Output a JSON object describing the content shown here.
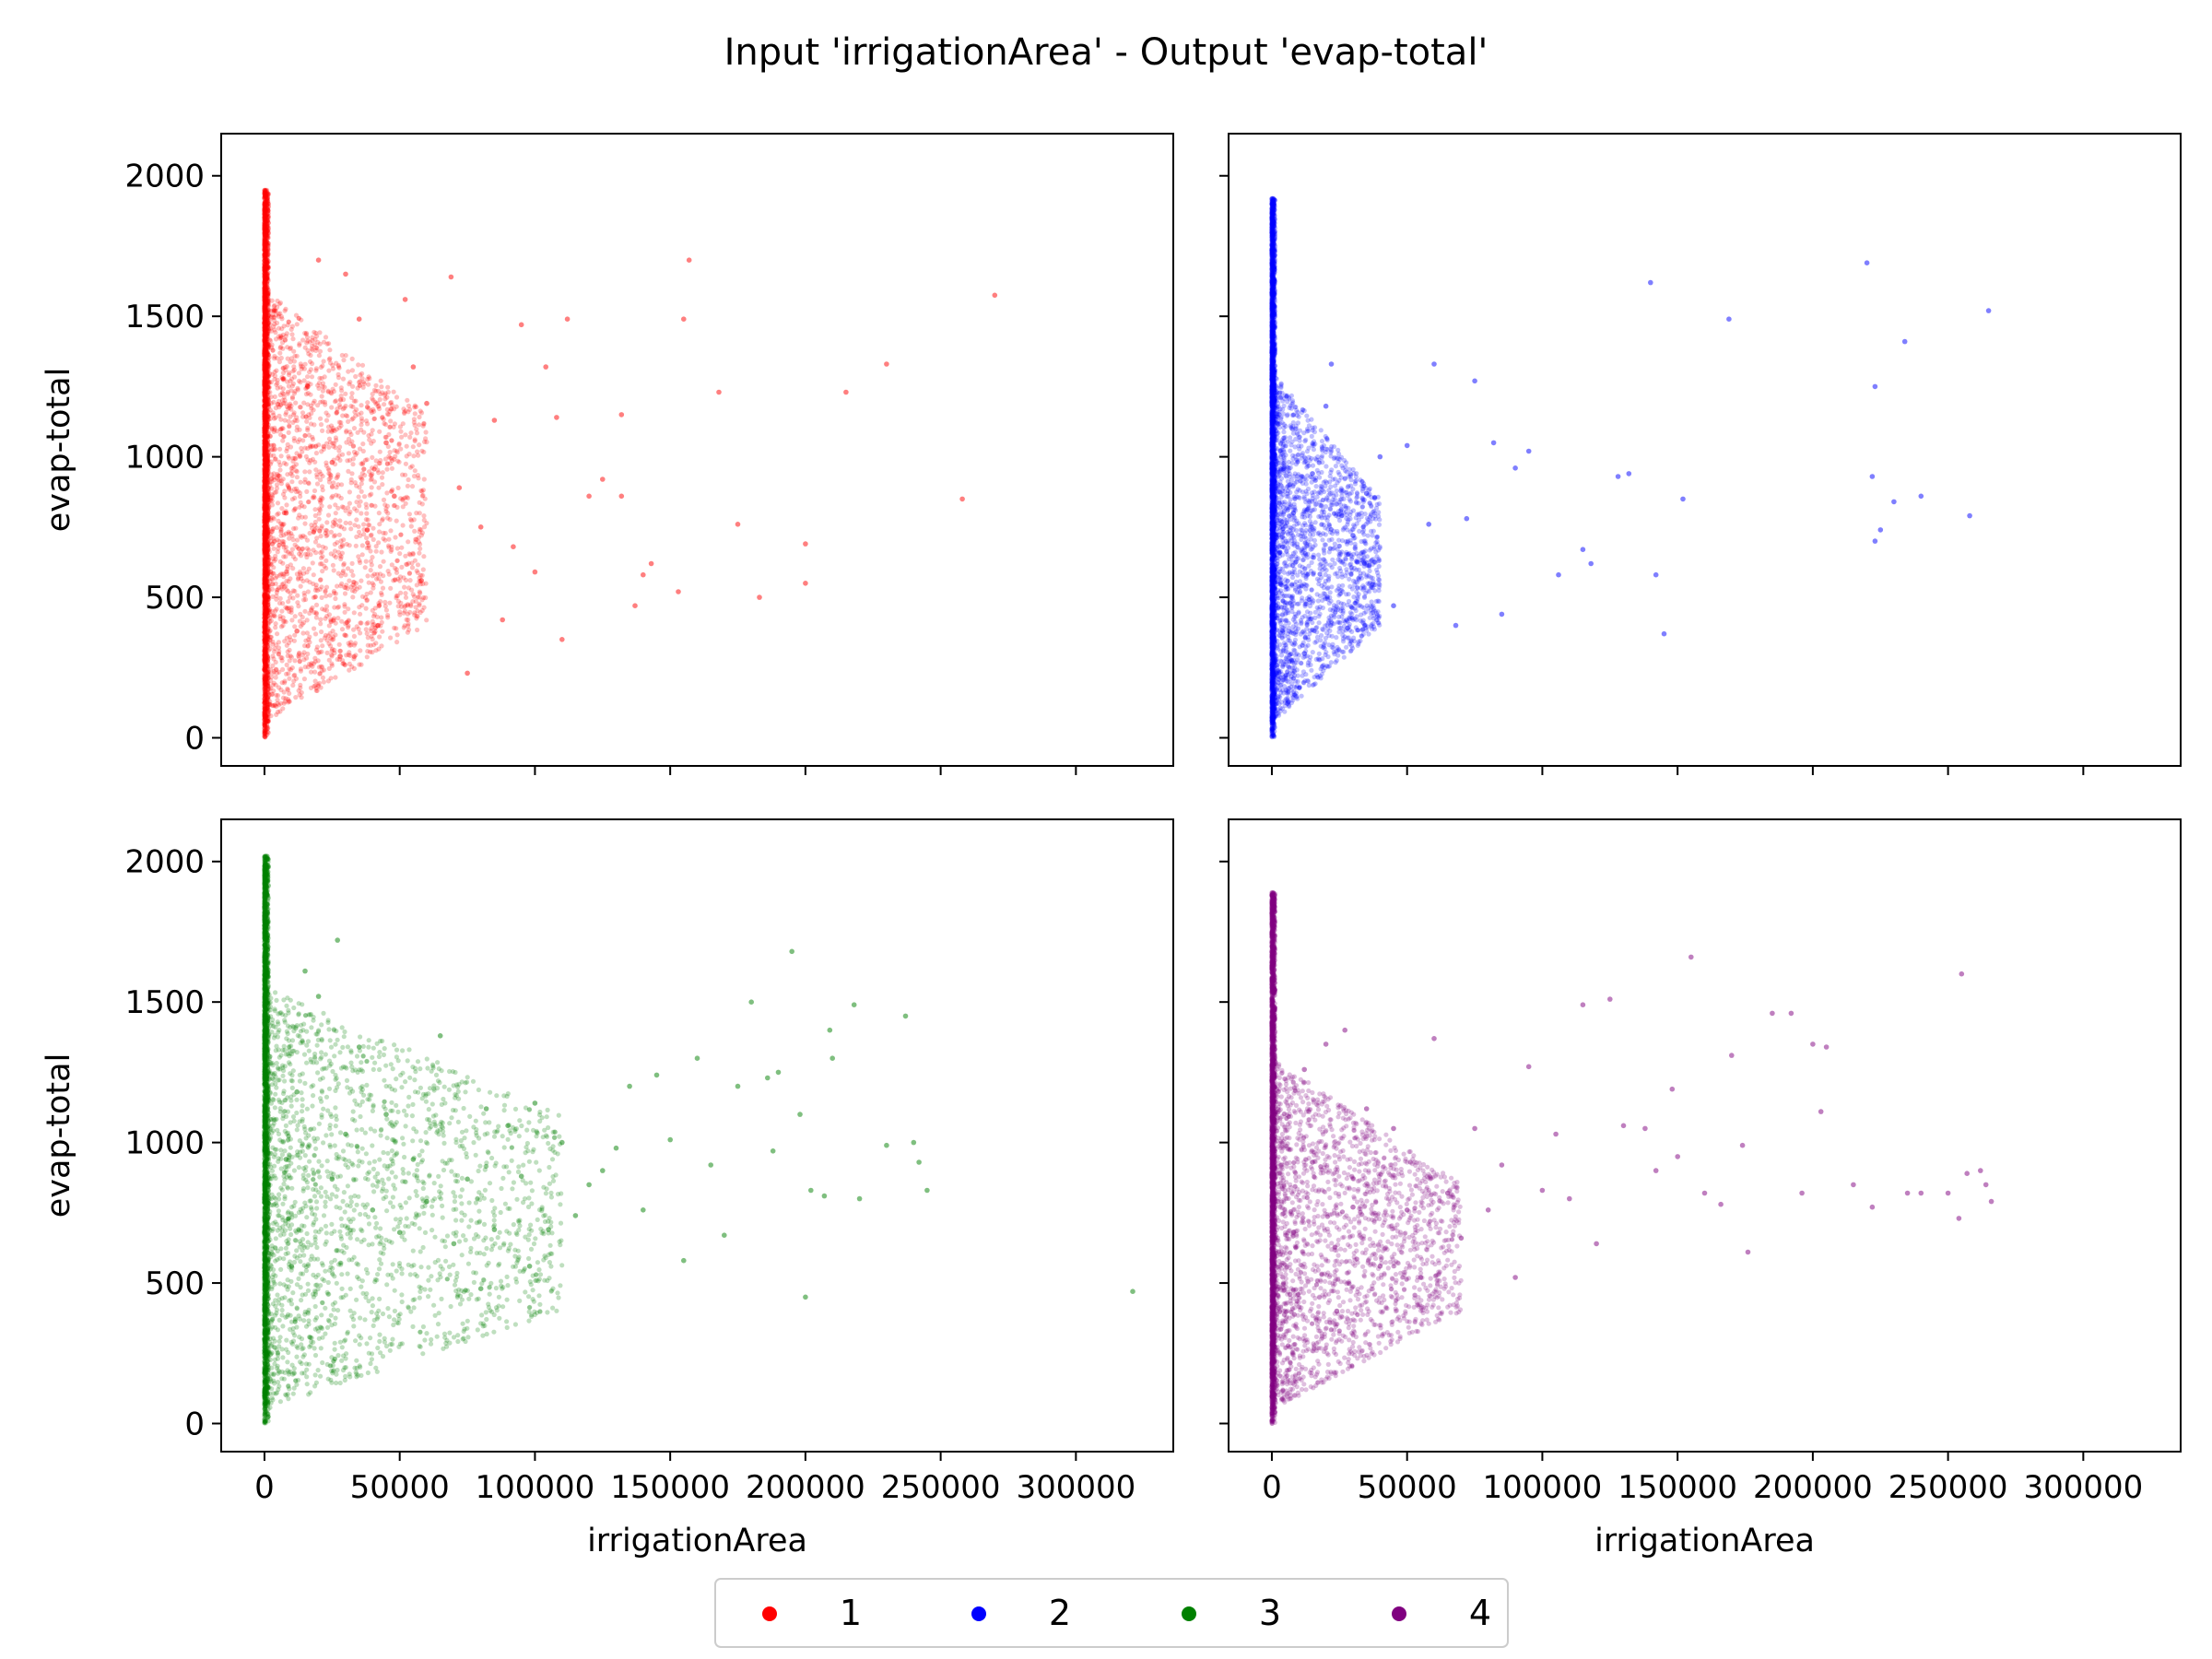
{
  "chart_data": {
    "type": "scatter",
    "title": "Input 'irrigationArea' - Output 'evap-total'",
    "xlabel": "irrigationArea",
    "ylabel": "evap-total",
    "xlim": [
      -16000,
      336000
    ],
    "ylim": [
      -100,
      2150
    ],
    "xticks": [
      0,
      50000,
      100000,
      150000,
      200000,
      250000,
      300000
    ],
    "xtick_labels": [
      "0",
      "50000",
      "100000",
      "150000",
      "200000",
      "250000",
      "300000"
    ],
    "yticks": [
      0,
      500,
      1000,
      1500,
      2000
    ],
    "ytick_labels": [
      "0",
      "500",
      "1000",
      "1500",
      "2000"
    ],
    "grid": false,
    "shared_axes": true,
    "legend": {
      "placement": "bottom-center",
      "ncol": 4
    },
    "panels": [
      {
        "series": "1",
        "color": "#ff0000",
        "points": [
          [
            270000,
            1575
          ],
          [
            258000,
            850
          ],
          [
            230000,
            1330
          ],
          [
            215000,
            1230
          ],
          [
            200000,
            690
          ],
          [
            200000,
            550
          ],
          [
            183000,
            500
          ],
          [
            175000,
            760
          ],
          [
            168000,
            1230
          ],
          [
            157000,
            1700
          ],
          [
            155000,
            1490
          ],
          [
            153000,
            520
          ],
          [
            143000,
            620
          ],
          [
            140000,
            580
          ],
          [
            137000,
            470
          ],
          [
            132000,
            1150
          ],
          [
            132000,
            860
          ],
          [
            125000,
            920
          ],
          [
            120000,
            860
          ],
          [
            112000,
            1490
          ],
          [
            110000,
            350
          ],
          [
            108000,
            1140
          ],
          [
            104000,
            1320
          ],
          [
            100000,
            590
          ],
          [
            95000,
            1470
          ],
          [
            92000,
            680
          ],
          [
            88000,
            420
          ],
          [
            85000,
            1130
          ],
          [
            80000,
            750
          ],
          [
            75000,
            230
          ],
          [
            72000,
            890
          ],
          [
            69000,
            1640
          ],
          [
            60000,
            1190
          ],
          [
            58000,
            560
          ],
          [
            55000,
            1320
          ],
          [
            52000,
            1560
          ],
          [
            48000,
            860
          ],
          [
            45000,
            1050
          ],
          [
            42000,
            400
          ],
          [
            38000,
            740
          ],
          [
            35000,
            1490
          ],
          [
            30000,
            1650
          ],
          [
            28000,
            290
          ],
          [
            25000,
            980
          ],
          [
            20000,
            1700
          ],
          [
            16000,
            1250
          ],
          [
            12000,
            380
          ],
          [
            8000,
            800
          ]
        ],
        "dense_core": {
          "x_max": 1500,
          "y_max": 1950
        },
        "spread_region": {
          "x_max": 60000,
          "y_min": 50,
          "y_max": 1600
        }
      },
      {
        "series": "2",
        "color": "#0000ff",
        "points": [
          [
            265000,
            1520
          ],
          [
            258000,
            790
          ],
          [
            240000,
            860
          ],
          [
            234000,
            1410
          ],
          [
            230000,
            840
          ],
          [
            225000,
            740
          ],
          [
            223000,
            1250
          ],
          [
            222000,
            930
          ],
          [
            220000,
            1690
          ],
          [
            223000,
            700
          ],
          [
            169000,
            1490
          ],
          [
            152000,
            850
          ],
          [
            140000,
            1620
          ],
          [
            142000,
            580
          ],
          [
            145000,
            370
          ],
          [
            132000,
            940
          ],
          [
            128000,
            930
          ],
          [
            118000,
            620
          ],
          [
            115000,
            670
          ],
          [
            106000,
            580
          ],
          [
            95000,
            1020
          ],
          [
            90000,
            960
          ],
          [
            85000,
            440
          ],
          [
            82000,
            1050
          ],
          [
            75000,
            1270
          ],
          [
            72000,
            780
          ],
          [
            68000,
            400
          ],
          [
            60000,
            1330
          ],
          [
            58000,
            760
          ],
          [
            50000,
            1040
          ],
          [
            45000,
            470
          ],
          [
            40000,
            1000
          ],
          [
            35000,
            870
          ],
          [
            30000,
            720
          ],
          [
            28000,
            390
          ],
          [
            22000,
            1330
          ],
          [
            20000,
            1180
          ],
          [
            15000,
            940
          ],
          [
            12000,
            300
          ],
          [
            8000,
            800
          ]
        ],
        "dense_core": {
          "x_max": 1200,
          "y_max": 1920
        },
        "spread_region": {
          "x_max": 40000,
          "y_min": 50,
          "y_max": 1300
        }
      },
      {
        "series": "3",
        "color": "#008000",
        "points": [
          [
            321000,
            470
          ],
          [
            245000,
            830
          ],
          [
            242000,
            930
          ],
          [
            240000,
            1000
          ],
          [
            237000,
            1450
          ],
          [
            230000,
            990
          ],
          [
            220000,
            800
          ],
          [
            218000,
            1490
          ],
          [
            210000,
            1300
          ],
          [
            209000,
            1400
          ],
          [
            207000,
            810
          ],
          [
            202000,
            830
          ],
          [
            200000,
            450
          ],
          [
            198000,
            1100
          ],
          [
            195000,
            1680
          ],
          [
            190000,
            1250
          ],
          [
            188000,
            970
          ],
          [
            186000,
            1230
          ],
          [
            180000,
            1500
          ],
          [
            175000,
            1200
          ],
          [
            170000,
            670
          ],
          [
            165000,
            920
          ],
          [
            160000,
            1300
          ],
          [
            155000,
            580
          ],
          [
            150000,
            1010
          ],
          [
            145000,
            1240
          ],
          [
            140000,
            760
          ],
          [
            135000,
            1200
          ],
          [
            130000,
            980
          ],
          [
            125000,
            900
          ],
          [
            120000,
            850
          ],
          [
            115000,
            740
          ],
          [
            110000,
            1000
          ],
          [
            105000,
            690
          ],
          [
            100000,
            1140
          ],
          [
            98000,
            560
          ],
          [
            95000,
            880
          ],
          [
            90000,
            1060
          ],
          [
            85000,
            690
          ],
          [
            82000,
            1120
          ],
          [
            80000,
            480
          ],
          [
            75000,
            870
          ],
          [
            70000,
            640
          ],
          [
            65000,
            1380
          ],
          [
            60000,
            790
          ],
          [
            55000,
            940
          ],
          [
            50000,
            680
          ],
          [
            45000,
            1100
          ],
          [
            40000,
            760
          ],
          [
            35000,
            1340
          ],
          [
            30000,
            1030
          ],
          [
            27000,
            1720
          ],
          [
            25000,
            870
          ],
          [
            20000,
            1520
          ],
          [
            15000,
            1610
          ],
          [
            12000,
            1180
          ],
          [
            10000,
            560
          ],
          [
            8000,
            940
          ]
        ],
        "dense_core": {
          "x_max": 1500,
          "y_max": 2020
        },
        "spread_region": {
          "x_max": 110000,
          "y_min": 50,
          "y_max": 1550
        }
      },
      {
        "series": "4",
        "color": "#800080",
        "points": [
          [
            266000,
            790
          ],
          [
            264000,
            850
          ],
          [
            262000,
            900
          ],
          [
            257000,
            890
          ],
          [
            255000,
            1600
          ],
          [
            254000,
            730
          ],
          [
            250000,
            820
          ],
          [
            240000,
            820
          ],
          [
            235000,
            820
          ],
          [
            222000,
            770
          ],
          [
            215000,
            850
          ],
          [
            205000,
            1340
          ],
          [
            203000,
            1110
          ],
          [
            200000,
            1350
          ],
          [
            196000,
            820
          ],
          [
            192000,
            1460
          ],
          [
            185000,
            1460
          ],
          [
            176000,
            610
          ],
          [
            174000,
            990
          ],
          [
            170000,
            1310
          ],
          [
            166000,
            780
          ],
          [
            160000,
            820
          ],
          [
            155000,
            1660
          ],
          [
            150000,
            950
          ],
          [
            148000,
            1190
          ],
          [
            142000,
            900
          ],
          [
            138000,
            1050
          ],
          [
            130000,
            1060
          ],
          [
            125000,
            1510
          ],
          [
            120000,
            640
          ],
          [
            115000,
            1490
          ],
          [
            110000,
            800
          ],
          [
            105000,
            1030
          ],
          [
            100000,
            830
          ],
          [
            95000,
            1270
          ],
          [
            90000,
            520
          ],
          [
            85000,
            920
          ],
          [
            80000,
            760
          ],
          [
            75000,
            1050
          ],
          [
            70000,
            660
          ],
          [
            65000,
            820
          ],
          [
            60000,
            1370
          ],
          [
            55000,
            520
          ],
          [
            50000,
            760
          ],
          [
            45000,
            1050
          ],
          [
            40000,
            560
          ],
          [
            35000,
            1120
          ],
          [
            30000,
            770
          ],
          [
            27000,
            1400
          ],
          [
            24000,
            400
          ],
          [
            20000,
            1350
          ],
          [
            15000,
            930
          ],
          [
            12000,
            1260
          ],
          [
            8000,
            680
          ]
        ],
        "dense_core": {
          "x_max": 1200,
          "y_max": 1890
        },
        "spread_region": {
          "x_max": 70000,
          "y_min": 50,
          "y_max": 1300
        }
      }
    ]
  },
  "legend_entries": [
    {
      "label": "1",
      "color": "#ff0000"
    },
    {
      "label": "2",
      "color": "#0000ff"
    },
    {
      "label": "3",
      "color": "#008000"
    },
    {
      "label": "4",
      "color": "#800080"
    }
  ]
}
